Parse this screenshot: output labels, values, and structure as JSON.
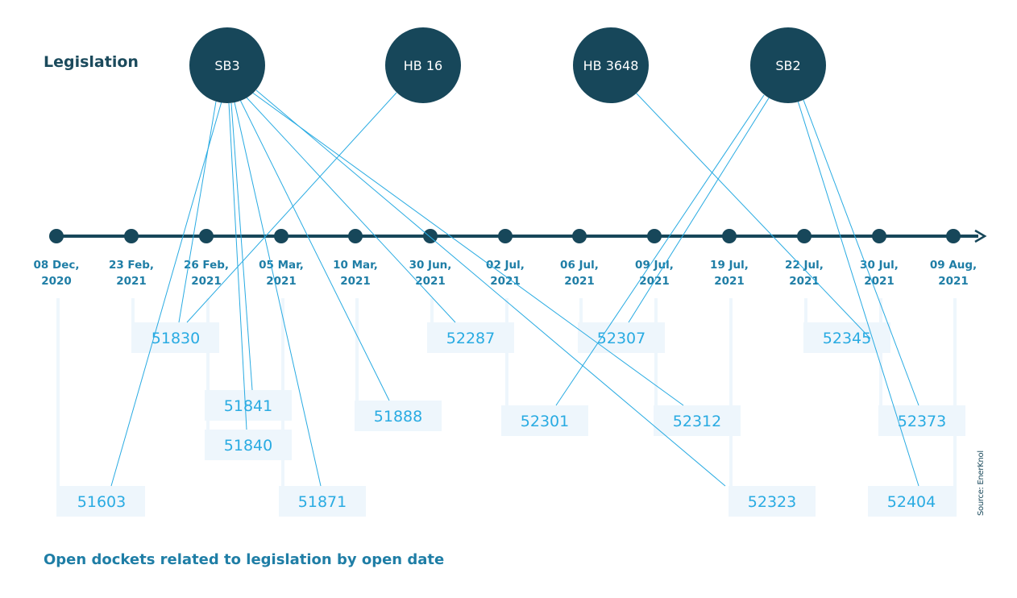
{
  "title": "Legislation",
  "caption": "Open dockets related to legislation by open date",
  "source": "Source: EnerKnol",
  "colors": {
    "dark": "#17475a",
    "accent": "#29abe2",
    "box_fill": "#eef6fc",
    "date_text": "#1f7ea6"
  },
  "legislation": [
    "SB3",
    "HB 16",
    "HB 3648",
    "SB2"
  ],
  "dates": [
    "08 Dec,|2020",
    "23 Feb,|2021",
    "26 Feb,|2021",
    "05 Mar,|2021",
    "10 Mar,|2021",
    "30 Jun,|2021",
    "02 Jul,|2021",
    "06 Jul,|2021",
    "09 Jul,|2021",
    "19 Jul,|2021",
    "22 Jul,|2021",
    "30 Jul,|2021",
    "09 Aug,|2021"
  ],
  "dockets": [
    {
      "id": "51603",
      "date": "08 Dec, 2020"
    },
    {
      "id": "51830",
      "date": "23 Feb, 2021"
    },
    {
      "id": "51841",
      "date": "26 Feb, 2021"
    },
    {
      "id": "51840",
      "date": "26 Feb, 2021"
    },
    {
      "id": "51871",
      "date": "05 Mar, 2021"
    },
    {
      "id": "51888",
      "date": "10 Mar, 2021"
    },
    {
      "id": "52287",
      "date": "30 Jun, 2021"
    },
    {
      "id": "52301",
      "date": "02 Jul, 2021"
    },
    {
      "id": "52307",
      "date": "06 Jul, 2021"
    },
    {
      "id": "52312",
      "date": "09 Jul, 2021"
    },
    {
      "id": "52323",
      "date": "19 Jul, 2021"
    },
    {
      "id": "52345",
      "date": "22 Jul, 2021"
    },
    {
      "id": "52373",
      "date": "30 Jul, 2021"
    },
    {
      "id": "52404",
      "date": "09 Aug, 2021"
    }
  ],
  "links": [
    [
      "SB3",
      "51603"
    ],
    [
      "SB3",
      "51830"
    ],
    [
      "SB3",
      "51841"
    ],
    [
      "SB3",
      "51840"
    ],
    [
      "SB3",
      "51871"
    ],
    [
      "SB3",
      "51888"
    ],
    [
      "SB3",
      "52287"
    ],
    [
      "SB3",
      "52312"
    ],
    [
      "SB3",
      "52323"
    ],
    [
      "HB 16",
      "51830"
    ],
    [
      "HB 3648",
      "52345"
    ],
    [
      "SB2",
      "52307"
    ],
    [
      "SB2",
      "52301"
    ],
    [
      "SB2",
      "52373"
    ],
    [
      "SB2",
      "52404"
    ]
  ]
}
